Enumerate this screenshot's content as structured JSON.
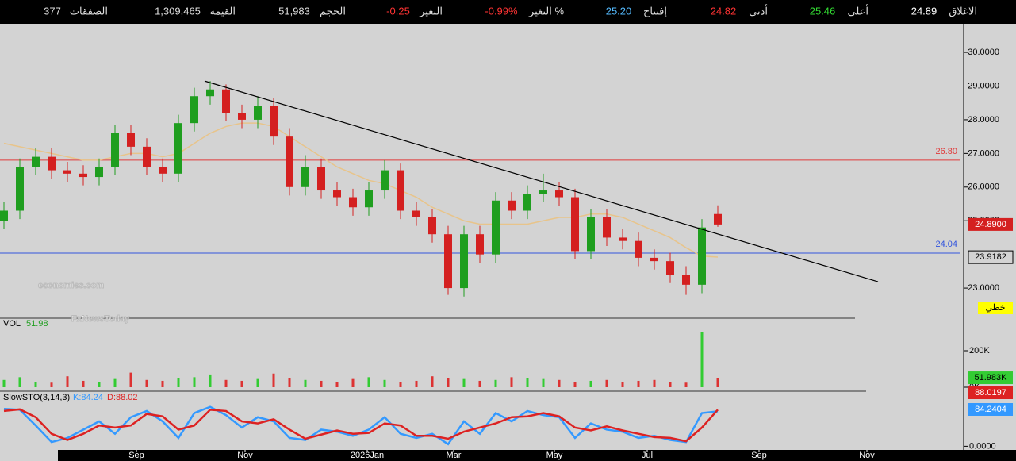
{
  "header": {
    "items": [
      {
        "label": "الاغلاق",
        "value": "24.89",
        "color": "#ffffff"
      },
      {
        "label": "أعلى",
        "value": "25.46",
        "color": "#33dd33"
      },
      {
        "label": "أدنى",
        "value": "24.82",
        "color": "#ff3333"
      },
      {
        "label": "إفتتاح",
        "value": "25.20",
        "color": "#55bbff"
      },
      {
        "label": "التغير %",
        "value": "-0.99%",
        "color": "#ff3333"
      },
      {
        "label": "التغير",
        "value": "-0.25",
        "color": "#ff3333"
      },
      {
        "label": "الحجم",
        "value": "51,983",
        "color": "#dddddd"
      },
      {
        "label": "القيمة",
        "value": "1,309,465",
        "color": "#dddddd"
      },
      {
        "label": "الصفقات",
        "value": "377",
        "color": "#dddddd"
      }
    ]
  },
  "chart_data": [
    {
      "type": "candlestick",
      "up_color": "#1f9e1f",
      "down_color": "#d42020",
      "x": [
        0,
        1,
        2,
        3,
        4,
        5,
        6,
        7,
        8,
        9,
        10,
        11,
        12,
        13,
        14,
        15,
        16,
        17,
        18,
        19,
        20,
        21,
        22,
        23,
        24,
        25,
        26,
        27,
        28,
        29,
        30,
        31,
        32,
        33,
        34,
        35,
        36,
        37,
        38,
        39,
        40,
        41,
        42,
        43,
        44,
        45
      ],
      "open": [
        25.0,
        25.3,
        26.6,
        26.9,
        26.5,
        26.4,
        26.3,
        26.6,
        27.6,
        27.2,
        26.6,
        26.4,
        27.9,
        28.7,
        28.9,
        28.2,
        28.0,
        28.4,
        27.5,
        26.0,
        26.6,
        25.9,
        25.7,
        25.4,
        25.9,
        26.5,
        25.3,
        25.1,
        24.6,
        23.0,
        24.6,
        24.0,
        25.6,
        25.3,
        25.8,
        25.9,
        25.7,
        24.1,
        25.1,
        24.5,
        24.4,
        23.9,
        23.8,
        23.4,
        23.1,
        25.2
      ],
      "high": [
        25.55,
        26.85,
        27.15,
        27.15,
        26.75,
        26.65,
        26.85,
        27.85,
        27.85,
        27.45,
        26.85,
        28.15,
        28.95,
        29.15,
        29.05,
        28.45,
        28.7,
        28.65,
        27.75,
        26.95,
        26.85,
        26.15,
        25.95,
        26.15,
        26.8,
        26.7,
        25.55,
        25.35,
        24.85,
        24.85,
        24.85,
        25.85,
        25.85,
        26.05,
        26.4,
        26.15,
        25.95,
        25.35,
        25.35,
        24.75,
        24.65,
        24.15,
        24.05,
        23.65,
        25.05,
        25.46
      ],
      "low": [
        24.75,
        25.05,
        26.35,
        26.25,
        26.15,
        26.05,
        26.05,
        26.35,
        26.95,
        26.35,
        26.15,
        26.15,
        27.65,
        28.45,
        27.95,
        27.75,
        27.75,
        27.25,
        25.75,
        25.75,
        25.65,
        25.45,
        25.15,
        25.15,
        25.65,
        25.05,
        24.85,
        24.35,
        22.8,
        22.75,
        23.75,
        23.75,
        25.05,
        25.05,
        25.55,
        25.45,
        23.85,
        23.85,
        24.25,
        24.15,
        23.65,
        23.55,
        23.15,
        22.8,
        22.85,
        24.82
      ],
      "close": [
        25.3,
        26.6,
        26.9,
        26.5,
        26.4,
        26.3,
        26.6,
        27.6,
        27.2,
        26.6,
        26.4,
        27.9,
        28.7,
        28.9,
        28.2,
        28.0,
        28.4,
        27.5,
        26.0,
        26.6,
        25.9,
        25.7,
        25.4,
        25.9,
        26.5,
        25.3,
        25.1,
        24.6,
        23.0,
        24.6,
        24.0,
        25.6,
        25.3,
        25.8,
        25.9,
        25.7,
        24.1,
        25.1,
        24.5,
        24.4,
        23.9,
        23.8,
        23.4,
        23.1,
        24.8,
        24.89
      ],
      "ma": {
        "color": "#e8c48a",
        "values": [
          27.3,
          27.2,
          27.1,
          27.0,
          26.9,
          26.8,
          26.8,
          26.9,
          27.0,
          27.0,
          26.9,
          27.0,
          27.3,
          27.6,
          27.8,
          27.9,
          27.9,
          27.8,
          27.5,
          27.2,
          26.9,
          26.6,
          26.4,
          26.2,
          26.1,
          25.9,
          25.7,
          25.4,
          25.2,
          25.0,
          24.9,
          24.9,
          24.9,
          24.9,
          25.0,
          25.1,
          25.1,
          25.2,
          25.2,
          25.1,
          24.9,
          24.7,
          24.5,
          24.2,
          23.95,
          23.92
        ]
      },
      "ylim": [
        22.13,
        30.85
      ],
      "yticks": [
        {
          "value": 23,
          "label": "23.0000"
        },
        {
          "value": 25,
          "label": "25.0000"
        },
        {
          "value": 26,
          "label": "26.0000"
        },
        {
          "value": 27,
          "label": "27.0000"
        },
        {
          "value": 28,
          "label": "28.0000"
        },
        {
          "value": 29,
          "label": "29.0000"
        },
        {
          "value": 30,
          "label": "30.0000"
        }
      ],
      "xlim": [
        -0.25,
        60.5
      ],
      "xticks": [
        {
          "value": 8.35,
          "label": "Sep"
        },
        {
          "value": 15.2,
          "label": "Nov"
        },
        {
          "value": 22.9,
          "label": "2026Jan"
        },
        {
          "value": 28.35,
          "label": "Mar"
        },
        {
          "value": 34.7,
          "label": "May"
        },
        {
          "value": 40.55,
          "label": "Jul"
        },
        {
          "value": 47.6,
          "label": "Sep"
        },
        {
          "value": 54.4,
          "label": "Nov"
        }
      ],
      "hlines": [
        {
          "value": 26.8,
          "label": "26.80",
          "color": "#e03a3a"
        },
        {
          "value": 24.04,
          "label": "24.04",
          "color": "#3355dd"
        }
      ],
      "trendline": {
        "x": [
          12.65,
          55.1
        ],
        "y": [
          29.15,
          23.19
        ]
      },
      "last_price": {
        "value": 24.89,
        "label": "24.8900"
      },
      "ma_last": {
        "value": 23.9182,
        "label": "23.9182"
      },
      "scale_mode": "خطي",
      "watermark": [
        "economies.com",
        "FxNewsToday"
      ]
    },
    {
      "type": "bar",
      "title": "VOL",
      "title_value": "51.98",
      "values": [
        40,
        55,
        30,
        25,
        60,
        35,
        30,
        45,
        80,
        40,
        35,
        50,
        55,
        70,
        40,
        35,
        45,
        75,
        50,
        40,
        35,
        30,
        45,
        55,
        40,
        30,
        35,
        60,
        50,
        45,
        35,
        40,
        55,
        50,
        45,
        40,
        30,
        35,
        40,
        30,
        35,
        40,
        30,
        25,
        304,
        51.983
      ],
      "ylim": [
        0,
        374
      ],
      "yticks": [
        {
          "value": 0,
          "label": "0K"
        },
        {
          "value": 200,
          "label": "200K"
        }
      ],
      "last": {
        "value": 51.983,
        "label": "51.983K"
      }
    },
    {
      "type": "line",
      "title": "SlowSTO(3,14,3)",
      "series": [
        {
          "name": "K:84.24",
          "color": "#3399ff",
          "values": [
            90,
            88,
            50,
            10,
            20,
            40,
            60,
            30,
            70,
            85,
            60,
            20,
            80,
            95,
            75,
            45,
            70,
            60,
            20,
            15,
            40,
            35,
            25,
            40,
            70,
            30,
            20,
            30,
            5,
            60,
            30,
            80,
            60,
            85,
            75,
            70,
            20,
            55,
            40,
            35,
            20,
            25,
            15,
            10,
            80,
            84.24
          ],
          "last": {
            "value": 84.2404,
            "label": "84.2404"
          }
        },
        {
          "name": "D:88.02",
          "color": "#dd2222",
          "values": [
            85,
            89,
            70,
            30,
            15,
            30,
            50,
            45,
            50,
            78,
            72,
            40,
            50,
            88,
            85,
            60,
            55,
            65,
            40,
            18,
            28,
            38,
            30,
            32,
            55,
            50,
            25,
            25,
            18,
            35,
            45,
            55,
            70,
            72,
            80,
            72,
            45,
            38,
            48,
            38,
            30,
            22,
            20,
            12,
            45,
            88.02
          ],
          "last": {
            "value": 88.0197,
            "label": "88.0197"
          }
        }
      ],
      "ylim": [
        -5,
        125
      ],
      "yticks": [
        {
          "value": 0,
          "label": "0.0000"
        }
      ]
    }
  ]
}
